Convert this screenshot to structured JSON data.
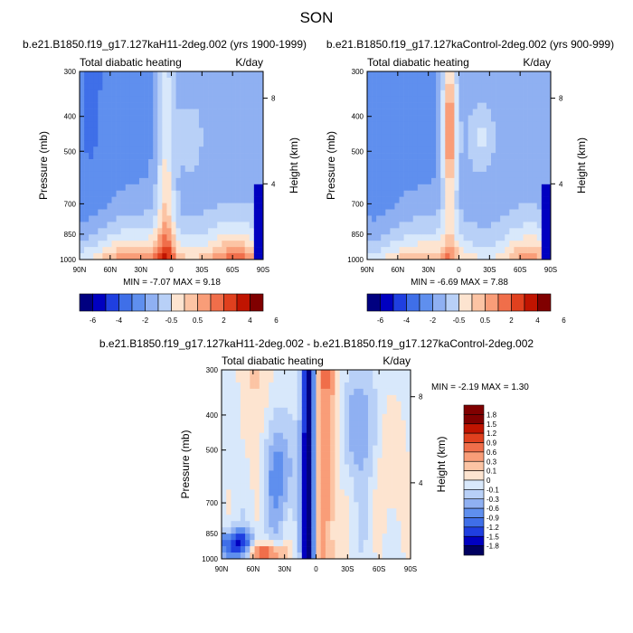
{
  "figure": {
    "title": "SON",
    "colors": {
      "level_colors": [
        "#000080",
        "#0000c0",
        "#1f3fe0",
        "#3f6fe8",
        "#5f8fee",
        "#8fb0f2",
        "#b8d0f7",
        "#d8e8fb",
        "#fde4d0",
        "#fcc4a4",
        "#f99d78",
        "#f06e4a",
        "#e0401e",
        "#c01400",
        "#800000"
      ]
    }
  },
  "chart_data": [
    {
      "type": "heatmap",
      "title": "b.e21.B1850.f19_g17.127kaH11-2deg.002 (yrs 1900-1999)",
      "left_label": "Total diabatic heating",
      "right_label": "K/day",
      "ylabel": "Pressure (mb)",
      "right_axis_label": "Height (km)",
      "x_ticks": [
        "90N",
        "60N",
        "30N",
        "0",
        "30S",
        "60S",
        "90S"
      ],
      "y_ticks": [
        "300",
        "400",
        "500",
        "700",
        "850",
        "1000"
      ],
      "right_ticks": [
        "8",
        "4"
      ],
      "stats": "MIN = -7.07 MAX = 9.18",
      "min": -7.07,
      "max": 9.18,
      "colorbar": {
        "levels": [
          "-6",
          "-4",
          "-2",
          "-0.5",
          "0.5",
          "2",
          "4",
          "6"
        ],
        "placement": "bottom"
      }
    },
    {
      "type": "heatmap",
      "title": "b.e21.B1850.f19_g17.127kaControl-2deg.002 (yrs 900-999)",
      "left_label": "Total diabatic heating",
      "right_label": "K/day",
      "ylabel": "Pressure (mb)",
      "right_axis_label": "Height (km)",
      "x_ticks": [
        "90N",
        "60N",
        "30N",
        "0",
        "30S",
        "60S",
        "90S"
      ],
      "y_ticks": [
        "300",
        "400",
        "500",
        "700",
        "850",
        "1000"
      ],
      "right_ticks": [
        "8",
        "4"
      ],
      "stats": "MIN = -6.69 MAX = 7.88",
      "min": -6.69,
      "max": 7.88,
      "colorbar": {
        "levels": [
          "-6",
          "-4",
          "-2",
          "-0.5",
          "0.5",
          "2",
          "4",
          "6"
        ],
        "placement": "bottom"
      }
    },
    {
      "type": "heatmap",
      "title": "b.e21.B1850.f19_g17.127kaH11-2deg.002 - b.e21.B1850.f19_g17.127kaControl-2deg.002",
      "left_label": "Total diabatic heating",
      "right_label": "K/day",
      "ylabel": "Pressure (mb)",
      "right_axis_label": "Height (km)",
      "x_ticks": [
        "90N",
        "60N",
        "30N",
        "0",
        "30S",
        "60S",
        "90S"
      ],
      "y_ticks": [
        "300",
        "400",
        "500",
        "700",
        "850",
        "1000"
      ],
      "right_ticks": [
        "8",
        "4"
      ],
      "stats": "MIN = -2.19 MAX = 1.30",
      "min": -2.19,
      "max": 1.3,
      "colorbar": {
        "levels": [
          "1.8",
          "1.5",
          "1.2",
          "0.9",
          "0.6",
          "0.3",
          "0.1",
          "0",
          "-0.1",
          "-0.3",
          "-0.6",
          "-0.9",
          "-1.2",
          "-1.5",
          "-1.8"
        ],
        "placement": "right"
      }
    }
  ]
}
